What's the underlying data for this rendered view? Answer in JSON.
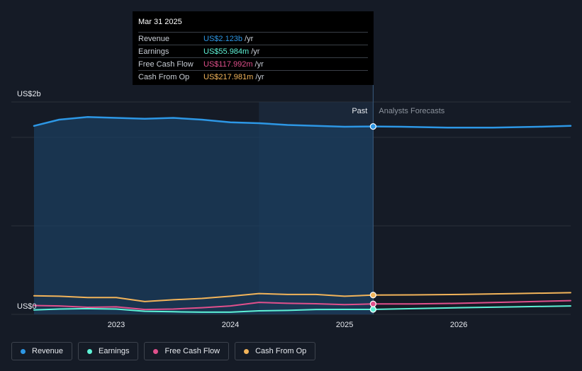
{
  "tooltip": {
    "date": "Mar 31 2025",
    "rows": [
      {
        "label": "Revenue",
        "value": "US$2.123b",
        "unit": "/yr",
        "color": "#2d97e5"
      },
      {
        "label": "Earnings",
        "value": "US$55.984m",
        "unit": "/yr",
        "color": "#5ef2d6"
      },
      {
        "label": "Free Cash Flow",
        "value": "US$117.992m",
        "unit": "/yr",
        "color": "#e0508c"
      },
      {
        "label": "Cash From Op",
        "value": "US$217.981m",
        "unit": "/yr",
        "color": "#f2b45a"
      }
    ]
  },
  "legend": [
    {
      "label": "Revenue",
      "color": "#2d97e5"
    },
    {
      "label": "Earnings",
      "color": "#5ef2d6"
    },
    {
      "label": "Free Cash Flow",
      "color": "#e0508c"
    },
    {
      "label": "Cash From Op",
      "color": "#f2b45a"
    }
  ],
  "chart_data": {
    "type": "line",
    "y_top_label": "US$2b",
    "y_bottom_label": "US$0",
    "past_label": "Past",
    "forecast_label": "Analysts Forecasts",
    "ylim": [
      0,
      2.4
    ],
    "xlim": [
      2022.28,
      2026.98
    ],
    "x_tick_labels": [
      "2023",
      "2024",
      "2025",
      "2026"
    ],
    "x_ticks": [
      2023.0,
      2024.0,
      2025.0,
      2026.0
    ],
    "gridlines_y": [
      0,
      1,
      2
    ],
    "shade_start": 2024.25,
    "divider": 2025.25,
    "series": [
      {
        "name": "Revenue",
        "color": "#2d97e5",
        "width": 2.5,
        "fill": true,
        "points": [
          [
            2022.28,
            2.13
          ],
          [
            2022.5,
            2.2
          ],
          [
            2022.75,
            2.23
          ],
          [
            2023.0,
            2.22
          ],
          [
            2023.25,
            2.21
          ],
          [
            2023.5,
            2.22
          ],
          [
            2023.75,
            2.2
          ],
          [
            2024.0,
            2.17
          ],
          [
            2024.25,
            2.16
          ],
          [
            2024.5,
            2.14
          ],
          [
            2024.75,
            2.13
          ],
          [
            2025.0,
            2.12
          ],
          [
            2025.25,
            2.123
          ]
        ]
      },
      {
        "name": "Revenue",
        "color": "#2d97e5",
        "width": 2.5,
        "fill": false,
        "points": [
          [
            2025.25,
            2.123
          ],
          [
            2025.5,
            2.12
          ],
          [
            2025.9,
            2.11
          ],
          [
            2026.3,
            2.11
          ],
          [
            2026.7,
            2.12
          ],
          [
            2026.98,
            2.13
          ]
        ]
      },
      {
        "name": "Cash From Op",
        "color": "#f2b45a",
        "width": 2,
        "points": [
          [
            2022.28,
            0.21
          ],
          [
            2022.5,
            0.205
          ],
          [
            2022.75,
            0.19
          ],
          [
            2023.0,
            0.19
          ],
          [
            2023.25,
            0.145
          ],
          [
            2023.5,
            0.165
          ],
          [
            2023.75,
            0.18
          ],
          [
            2024.0,
            0.205
          ],
          [
            2024.25,
            0.235
          ],
          [
            2024.5,
            0.225
          ],
          [
            2024.75,
            0.225
          ],
          [
            2025.0,
            0.205
          ],
          [
            2025.25,
            0.218
          ],
          [
            2025.6,
            0.22
          ],
          [
            2026.0,
            0.225
          ],
          [
            2026.5,
            0.235
          ],
          [
            2026.98,
            0.245
          ]
        ]
      },
      {
        "name": "Free Cash Flow",
        "color": "#e0508c",
        "width": 2,
        "points": [
          [
            2022.28,
            0.1
          ],
          [
            2022.5,
            0.095
          ],
          [
            2022.75,
            0.08
          ],
          [
            2023.0,
            0.085
          ],
          [
            2023.25,
            0.055
          ],
          [
            2023.5,
            0.06
          ],
          [
            2023.75,
            0.075
          ],
          [
            2024.0,
            0.095
          ],
          [
            2024.25,
            0.135
          ],
          [
            2024.5,
            0.125
          ],
          [
            2024.75,
            0.12
          ],
          [
            2025.0,
            0.11
          ],
          [
            2025.25,
            0.118
          ],
          [
            2025.6,
            0.118
          ],
          [
            2026.0,
            0.125
          ],
          [
            2026.5,
            0.14
          ],
          [
            2026.98,
            0.155
          ]
        ]
      },
      {
        "name": "Earnings",
        "color": "#5ef2d6",
        "width": 2,
        "points": [
          [
            2022.28,
            0.05
          ],
          [
            2022.5,
            0.06
          ],
          [
            2022.75,
            0.065
          ],
          [
            2023.0,
            0.06
          ],
          [
            2023.25,
            0.035
          ],
          [
            2023.5,
            0.03
          ],
          [
            2023.75,
            0.025
          ],
          [
            2024.0,
            0.025
          ],
          [
            2024.25,
            0.04
          ],
          [
            2024.5,
            0.045
          ],
          [
            2024.75,
            0.055
          ],
          [
            2025.0,
            0.056
          ],
          [
            2025.25,
            0.056
          ],
          [
            2025.6,
            0.065
          ],
          [
            2026.0,
            0.075
          ],
          [
            2026.5,
            0.085
          ],
          [
            2026.98,
            0.095
          ]
        ]
      }
    ],
    "markers": [
      {
        "x": 2025.25,
        "y": 2.123,
        "color": "#2d97e5"
      },
      {
        "x": 2025.25,
        "y": 0.218,
        "color": "#f2b45a"
      },
      {
        "x": 2025.25,
        "y": 0.118,
        "color": "#e0508c"
      },
      {
        "x": 2025.25,
        "y": 0.056,
        "color": "#5ef2d6"
      }
    ]
  }
}
